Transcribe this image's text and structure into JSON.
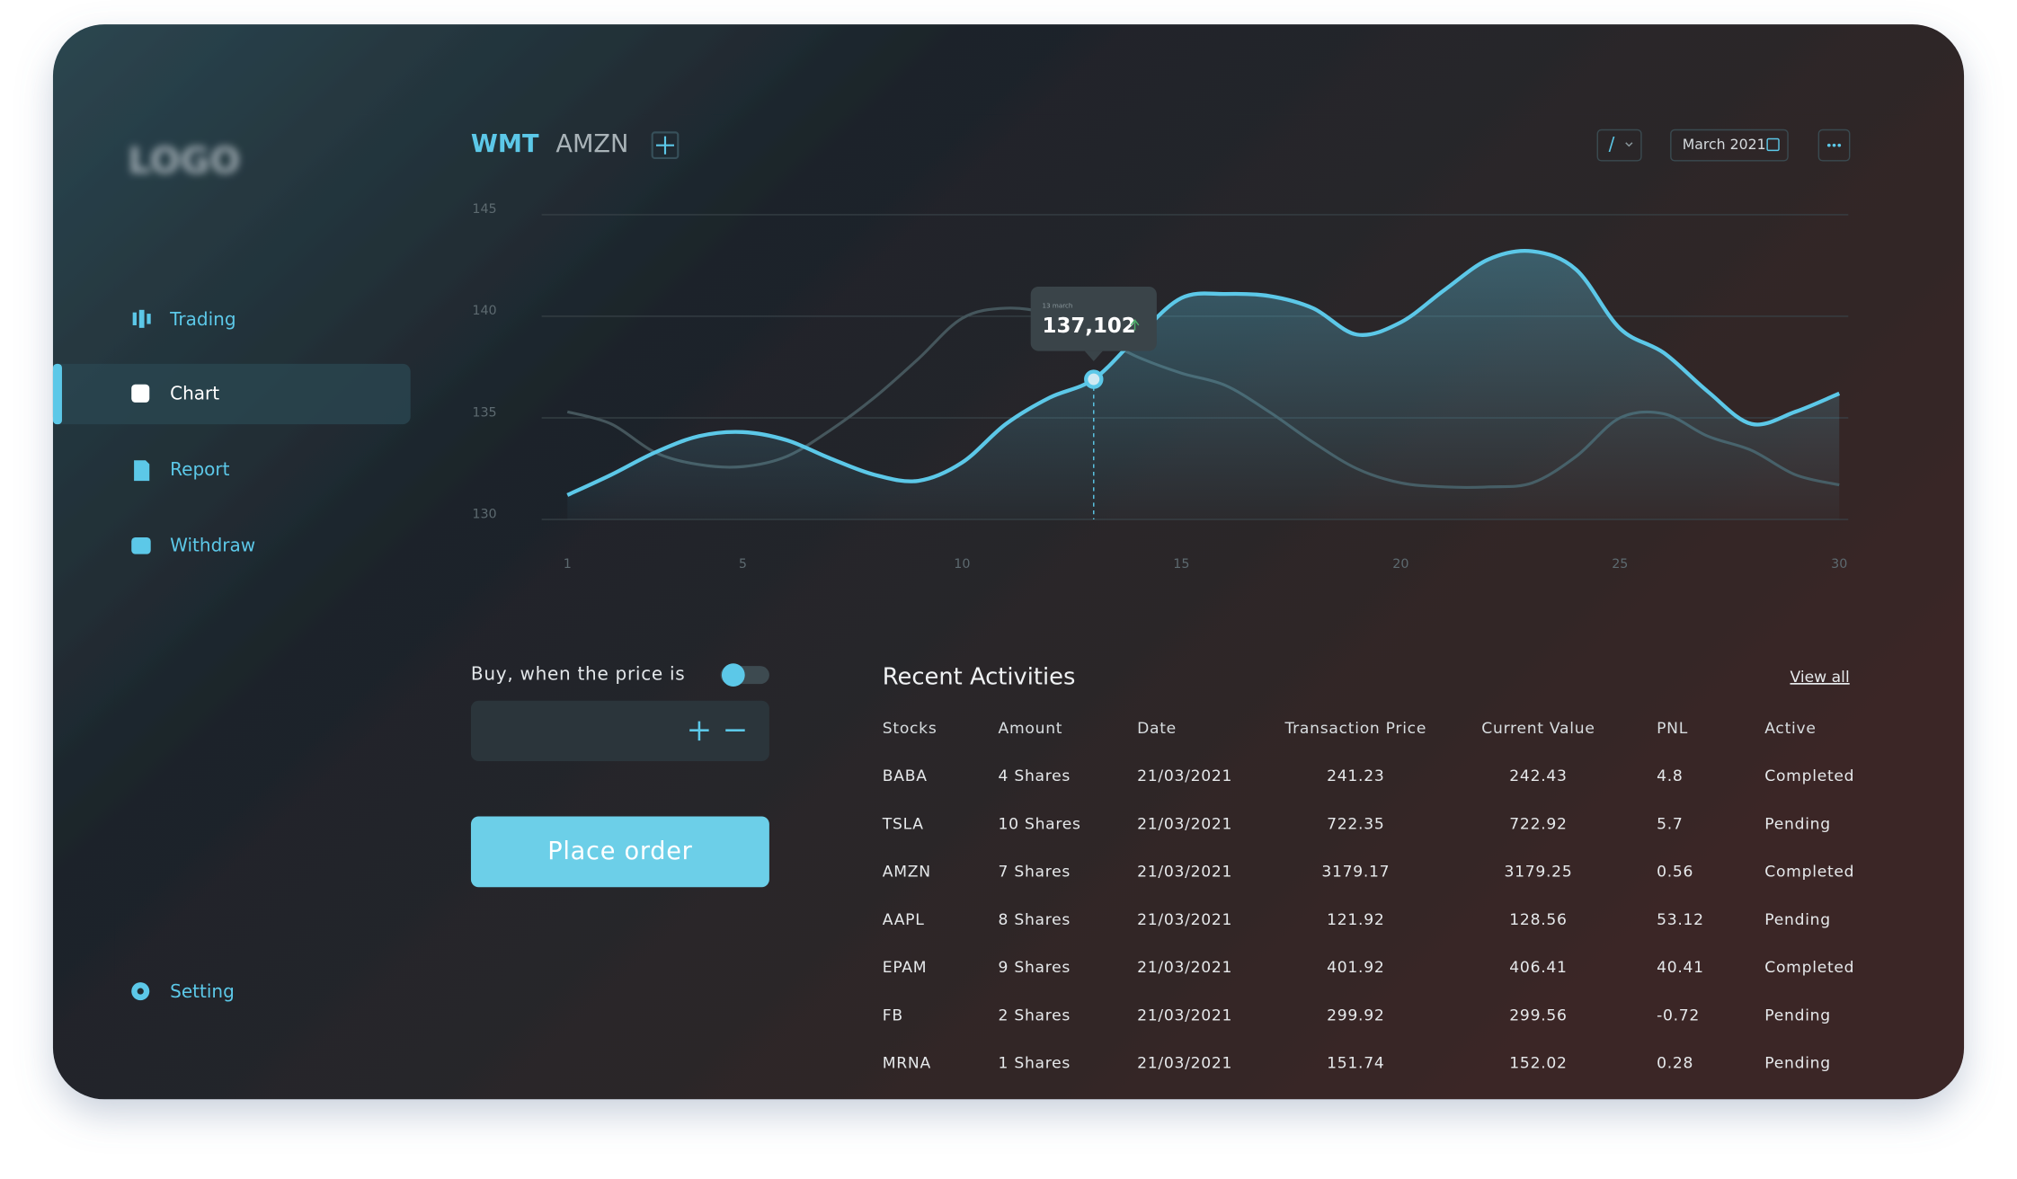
{
  "sidebar": {
    "logo": "LOGO",
    "menu": [
      "Trading",
      "Chart",
      "Report",
      "Withdraw"
    ],
    "setting": "Setting"
  },
  "tabs": [
    "WMT",
    "AMZN"
  ],
  "toolbar": {
    "draw": "/",
    "date": "March 2021"
  },
  "chart": {
    "type": "line",
    "x": [
      1,
      2,
      3,
      4,
      5,
      6,
      7,
      8,
      9,
      10,
      11,
      12,
      13,
      14,
      15,
      16,
      17,
      18,
      19,
      20,
      21,
      22,
      23,
      24,
      25,
      26,
      27,
      28,
      29,
      30
    ],
    "series": [
      {
        "color": "#5cc8e8",
        "values": [
          131.2,
          132.2,
          133.3,
          134.1,
          134.3,
          133.9,
          133.0,
          132.2,
          131.9,
          132.8,
          134.7,
          136.0,
          136.9,
          139.0,
          140.9,
          141.1,
          141.0,
          140.4,
          139.1,
          139.7,
          141.3,
          142.8,
          143.2,
          142.3,
          139.4,
          138.2,
          136.3,
          134.7,
          135.3,
          136.2
        ]
      },
      {
        "color": "#45565c",
        "values": [
          135.3,
          134.7,
          133.3,
          132.7,
          132.6,
          133.1,
          134.4,
          136.0,
          137.9,
          139.9,
          140.4,
          140.1,
          139.1,
          138.0,
          137.2,
          136.6,
          135.3,
          133.8,
          132.5,
          131.8,
          131.6,
          131.6,
          131.8,
          133.1,
          135.0,
          135.2,
          134.1,
          133.4,
          132.2,
          131.7
        ]
      }
    ],
    "xlim": [
      1,
      30
    ],
    "ylim": [
      130,
      145
    ],
    "xticks": [
      1,
      5,
      10,
      15,
      20,
      25,
      30
    ],
    "yticks": [
      130,
      135,
      140,
      145
    ],
    "grid": true,
    "tooltip": {
      "date": "13 march",
      "value": "137,102"
    }
  },
  "order": {
    "label": "Buy, when the price is",
    "button": "Place order"
  },
  "activities": {
    "title": "Recent Activities",
    "view_all": "View all",
    "columns": [
      "Stocks",
      "Amount",
      "Date",
      "Transaction Price",
      "Current Value",
      "PNL",
      "Active"
    ],
    "rows": [
      [
        "BABA",
        "4 Shares",
        "21/03/2021",
        241.23,
        242.43,
        4.8,
        "Completed"
      ],
      [
        "TSLA",
        "10 Shares",
        "21/03/2021",
        722.35,
        722.92,
        5.7,
        "Pending"
      ],
      [
        "AMZN",
        "7 Shares",
        "21/03/2021",
        3179.17,
        3179.25,
        0.56,
        "Completed"
      ],
      [
        "AAPL",
        "8 Shares",
        "21/03/2021",
        121.92,
        128.56,
        53.12,
        "Pending"
      ],
      [
        "EPAM",
        "9 Shares",
        "21/03/2021",
        401.92,
        406.41,
        40.41,
        "Completed"
      ],
      [
        "FB",
        "2 Shares",
        "21/03/2021",
        299.92,
        299.56,
        -0.72,
        "Pending"
      ],
      [
        "MRNA",
        "1 Shares",
        "21/03/2021",
        151.74,
        152.02,
        0.28,
        "Pending"
      ]
    ]
  }
}
